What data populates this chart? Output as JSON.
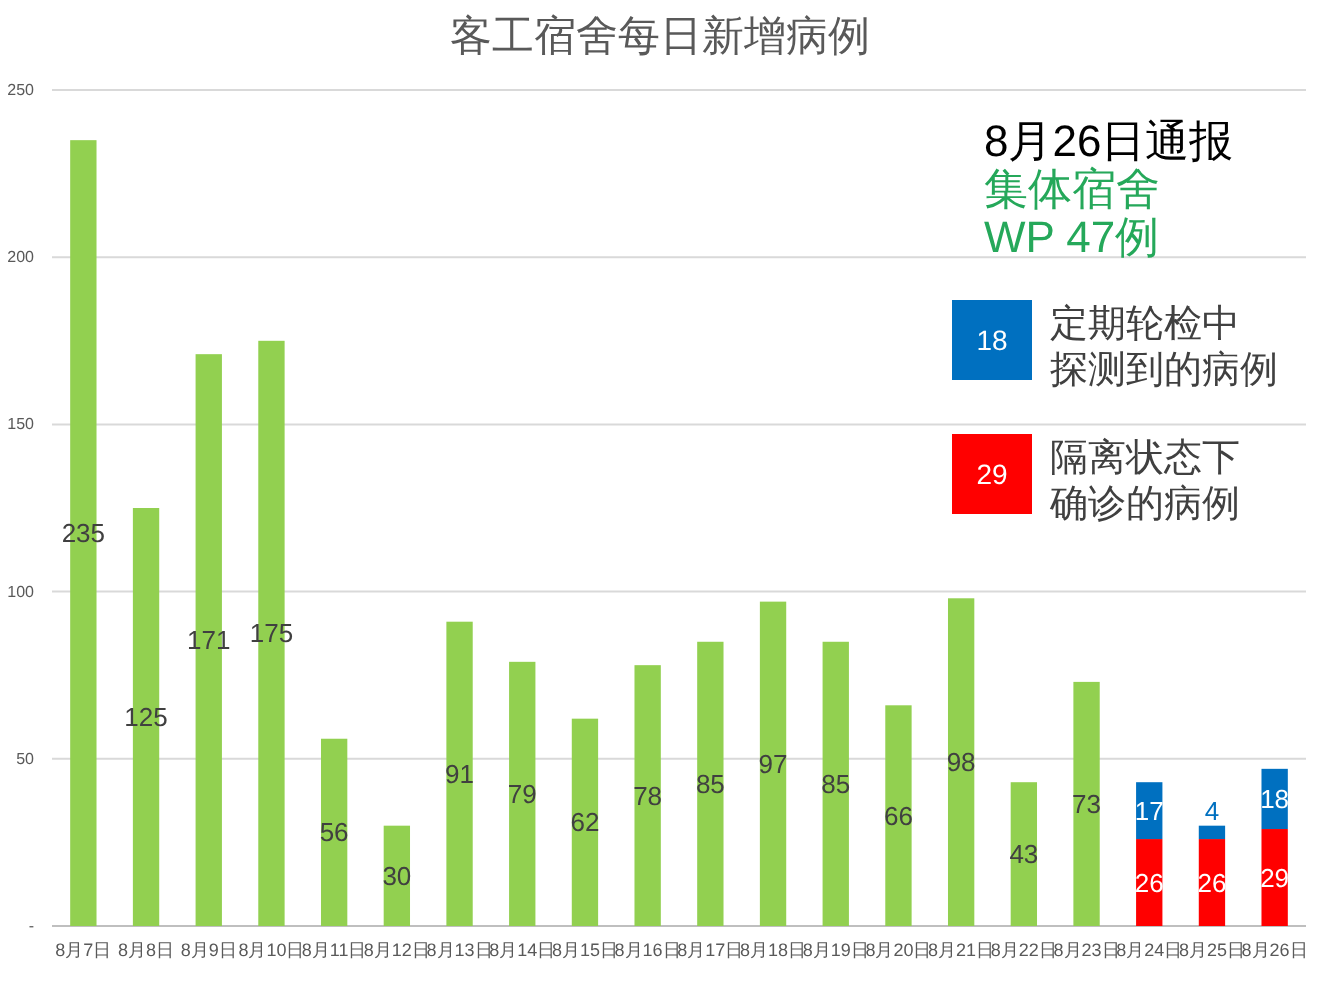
{
  "chart_data": {
    "type": "bar",
    "title": "客工宿舍每日新增病例",
    "categories": [
      "8月7日",
      "8月8日",
      "8月9日",
      "8月10日",
      "8月11日",
      "8月12日",
      "8月13日",
      "8月14日",
      "8月15日",
      "8月16日",
      "8月17日",
      "8月18日",
      "8月19日",
      "8月20日",
      "8月21日",
      "8月22日",
      "8月23日",
      "8月24日",
      "8月25日",
      "8月26日"
    ],
    "series": [
      {
        "color": "#92d050",
        "values": [
          235,
          125,
          171,
          175,
          56,
          30,
          91,
          79,
          62,
          78,
          85,
          97,
          85,
          66,
          98,
          43,
          73,
          null,
          null,
          null
        ]
      },
      {
        "name": "隔离状态下确诊的病例",
        "color": "#ff0000",
        "values": [
          null,
          null,
          null,
          null,
          null,
          null,
          null,
          null,
          null,
          null,
          null,
          null,
          null,
          null,
          null,
          null,
          null,
          26,
          26,
          29
        ]
      },
      {
        "name": "定期轮检中探测到的病例",
        "color": "#0070c0",
        "values": [
          null,
          null,
          null,
          null,
          null,
          null,
          null,
          null,
          null,
          null,
          null,
          null,
          null,
          null,
          null,
          null,
          null,
          17,
          4,
          18
        ]
      }
    ],
    "stacked": true,
    "ylim": [
      0,
      250
    ],
    "yticks": [
      {
        "value": 0,
        "label": "-"
      },
      50,
      100,
      150,
      200,
      250
    ],
    "grid": "y",
    "legend": "top right",
    "data_labels": true,
    "annotations": [
      "8月26日通报",
      "集体宿舍",
      "WP 47例",
      "18",
      "29"
    ]
  }
}
